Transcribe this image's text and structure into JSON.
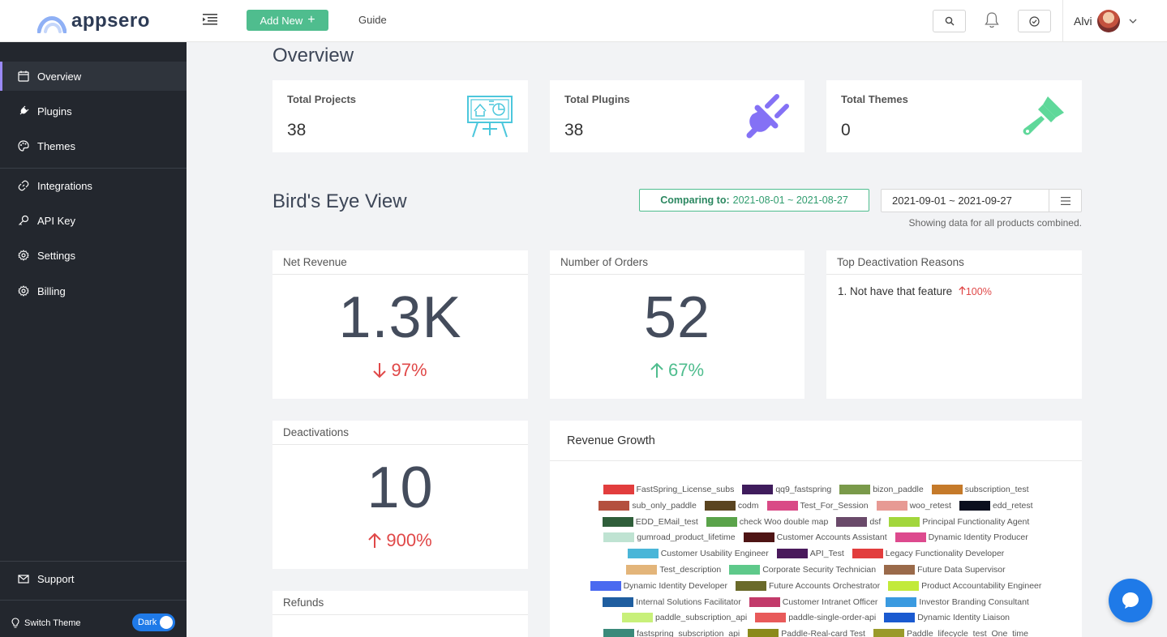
{
  "header": {
    "logo_text": "appsero",
    "add_new_label": "Add New",
    "guide_label": "Guide",
    "user_name": "Alvi"
  },
  "sidebar": {
    "items": [
      {
        "label": "Overview",
        "icon": "calendar-icon"
      },
      {
        "label": "Plugins",
        "icon": "plug-icon"
      },
      {
        "label": "Themes",
        "icon": "palette-icon"
      },
      {
        "label": "Integrations",
        "icon": "link-icon"
      },
      {
        "label": "API Key",
        "icon": "key-icon"
      },
      {
        "label": "Settings",
        "icon": "gear-icon"
      },
      {
        "label": "Billing",
        "icon": "gear-icon"
      }
    ],
    "support_label": "Support",
    "switch_theme_label": "Switch Theme",
    "theme_toggle_label": "Dark"
  },
  "overview": {
    "title": "Overview",
    "stats": [
      {
        "label": "Total Projects",
        "value": "38"
      },
      {
        "label": "Total Plugins",
        "value": "38"
      },
      {
        "label": "Total Themes",
        "value": "0"
      }
    ]
  },
  "birds_eye": {
    "title": "Bird's Eye View",
    "comparing_label": "Comparing to:",
    "comparing_range": "2021-08-01 ~ 2021-08-27",
    "date_range": "2021-09-01 ~ 2021-09-27",
    "showing_text": "Showing data for all products combined."
  },
  "metrics": {
    "net_revenue": {
      "label": "Net Revenue",
      "value": "1.3K",
      "delta": "97%",
      "direction": "down"
    },
    "orders": {
      "label": "Number of Orders",
      "value": "52",
      "delta": "67%",
      "direction": "up"
    },
    "deactivation_reasons": {
      "label": "Top Deactivation Reasons",
      "reason": "1. Not have that feature",
      "pct": "100%"
    },
    "deactivations": {
      "label": "Deactivations",
      "value": "10",
      "delta": "900%",
      "direction": "up"
    },
    "refunds": {
      "label": "Refunds"
    }
  },
  "revenue_growth": {
    "title": "Revenue Growth",
    "legend_rows": [
      [
        {
          "name": "FastSpring_License_subs",
          "color": "#e23d3d"
        },
        {
          "name": "qq9_fastspring",
          "color": "#3f1c5c"
        },
        {
          "name": "bizon_paddle",
          "color": "#7a9a4a"
        },
        {
          "name": "subscription_test",
          "color": "#c57a2a"
        }
      ],
      [
        {
          "name": "sub_only_paddle",
          "color": "#b4503e"
        },
        {
          "name": "codm",
          "color": "#5a4420"
        },
        {
          "name": "Test_For_Session",
          "color": "#d94a86"
        },
        {
          "name": "woo_retest",
          "color": "#e79a94"
        },
        {
          "name": "edd_retest",
          "color": "#0b0f1e"
        }
      ],
      [
        {
          "name": "EDD_EMail_test",
          "color": "#2f5e3a"
        },
        {
          "name": "check Woo double map",
          "color": "#5aa34a"
        },
        {
          "name": "dsf",
          "color": "#6a4a6a"
        },
        {
          "name": "Principal Functionality Agent",
          "color": "#a2d63c"
        }
      ],
      [
        {
          "name": "gumroad_product_lifetime",
          "color": "#bfe3d2"
        },
        {
          "name": "Customer Accounts Assistant",
          "color": "#4e1414"
        },
        {
          "name": "Dynamic Identity Producer",
          "color": "#dd4a8e"
        }
      ],
      [
        {
          "name": "Customer Usability Engineer",
          "color": "#4ab6d8"
        },
        {
          "name": "API_Test",
          "color": "#4a1a5c"
        },
        {
          "name": "Legacy Functionality Developer",
          "color": "#e23d3d"
        }
      ],
      [
        {
          "name": "Test_description",
          "color": "#e3b57a"
        },
        {
          "name": "Corporate Security Technician",
          "color": "#5ec98a"
        },
        {
          "name": "Future Data Supervisor",
          "color": "#9a6a4a"
        }
      ],
      [
        {
          "name": "Dynamic Identity Developer",
          "color": "#4a6af0"
        },
        {
          "name": "Future Accounts Orchestrator",
          "color": "#6a6a2a"
        },
        {
          "name": "Product Accountability Engineer",
          "color": "#c2ea3a"
        }
      ],
      [
        {
          "name": "Internal Solutions Facilitator",
          "color": "#1f5ea0"
        },
        {
          "name": "Customer Intranet Officer",
          "color": "#c23a6a"
        },
        {
          "name": "Investor Branding Consultant",
          "color": "#3a9ae0"
        }
      ],
      [
        {
          "name": "paddle_subscription_api",
          "color": "#c8f07a"
        },
        {
          "name": "paddle-single-order-api",
          "color": "#e85a5a"
        },
        {
          "name": "Dynamic Identity Liaison",
          "color": "#1a5ad0"
        }
      ],
      [
        {
          "name": "fastspring_subscription_api",
          "color": "#3a8a7a"
        },
        {
          "name": "Paddle-Real-card Test",
          "color": "#8a8a1a"
        },
        {
          "name": "Paddle_lifecycle_test_One_time",
          "color": "#9a9a2a"
        }
      ]
    ]
  }
}
